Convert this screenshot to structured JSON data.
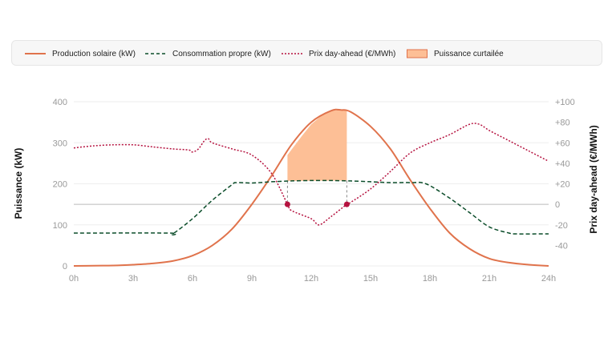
{
  "legend": {
    "solar": "Production solaire (kW)",
    "consumption": "Consommation propre (kW)",
    "price": "Prix day-ahead (€/MWh)",
    "curtailed": "Puissance curtailée"
  },
  "colors": {
    "solar": "#e0734c",
    "consumption": "#0b4d2a",
    "price": "#b5123f",
    "curtailed_fill": "#fdbf96",
    "curtailed_stroke": "#e0734c",
    "zero_line": "#bbbbbb",
    "grid": "#eeeeee"
  },
  "chart_data": {
    "type": "line",
    "xlabel": "",
    "x_ticks": [
      "0h",
      "3h",
      "6h",
      "9h",
      "12h",
      "15h",
      "18h",
      "21h",
      "24h"
    ],
    "xlim": [
      0,
      24
    ],
    "y_left": {
      "label": "Puissance (kW)",
      "lim": [
        0,
        400
      ],
      "ticks": [
        0,
        100,
        200,
        300,
        400
      ]
    },
    "y_right": {
      "label": "Prix day-ahead (€/MWh)",
      "lim": [
        -60,
        100
      ],
      "ticks": [
        "+100",
        "+80",
        "+60",
        "+40",
        "+20",
        "0",
        "-20",
        "-40"
      ],
      "tick_values": [
        100,
        80,
        60,
        40,
        20,
        0,
        -20,
        -40
      ]
    },
    "series": [
      {
        "name": "Production solaire (kW)",
        "axis": "left",
        "style": "solid",
        "x": [
          0,
          1,
          2,
          3,
          4,
          5,
          6,
          7,
          8,
          9,
          10,
          11,
          12,
          13,
          13.5,
          14,
          15,
          16,
          17,
          18,
          19,
          20,
          21,
          22,
          23,
          24
        ],
        "y": [
          0,
          0.5,
          1,
          3,
          6,
          12,
          25,
          50,
          90,
          150,
          220,
          295,
          350,
          378,
          380,
          375,
          340,
          285,
          210,
          140,
          80,
          42,
          18,
          8,
          3,
          0
        ]
      },
      {
        "name": "Consommation propre (kW)",
        "axis": "left",
        "style": "dashed",
        "x": [
          0,
          4.8,
          5,
          6,
          7,
          8,
          8.2,
          9,
          10,
          11,
          12,
          13,
          14,
          15,
          16,
          17,
          17.8,
          19,
          20,
          21,
          22,
          22.3,
          24
        ],
        "y": [
          80,
          80,
          78,
          115,
          160,
          198,
          203,
          202,
          205,
          207,
          208,
          208,
          207,
          205,
          203,
          203,
          200,
          165,
          130,
          95,
          80,
          78,
          78
        ]
      },
      {
        "name": "Prix day-ahead (€/MWh)",
        "axis": "right",
        "style": "dotted",
        "x": [
          0,
          1,
          2,
          3,
          4,
          5,
          5.8,
          6,
          6.3,
          6.6,
          6.8,
          7,
          8,
          9,
          10,
          10.8,
          11,
          12,
          12.4,
          13,
          13.8,
          14,
          15,
          16,
          17,
          18,
          19,
          20,
          20.5,
          21,
          22,
          23,
          24
        ],
        "y": [
          55,
          57,
          58,
          58,
          56,
          54,
          53,
          51,
          54,
          62,
          64,
          60,
          54,
          48,
          30,
          0,
          -6,
          -14,
          -20,
          -12,
          0,
          2,
          15,
          32,
          50,
          60,
          68,
          78,
          78,
          72,
          62,
          52,
          42
        ]
      }
    ],
    "curtailed_area": {
      "name": "Puissance curtailée",
      "x_start": 10.8,
      "x_end": 13.8,
      "top": [
        [
          10.8,
          270
        ],
        [
          11,
          283
        ],
        [
          11.5,
          315
        ],
        [
          12,
          345
        ],
        [
          12.5,
          365
        ],
        [
          13,
          378
        ],
        [
          13.5,
          380
        ],
        [
          13.8,
          379
        ]
      ],
      "bottom": [
        [
          10.8,
          207
        ],
        [
          13.8,
          208
        ]
      ]
    },
    "markers": [
      {
        "x": 10.8,
        "price": 0
      },
      {
        "x": 13.8,
        "price": 0
      }
    ],
    "grid": true,
    "legend_position": "top"
  }
}
